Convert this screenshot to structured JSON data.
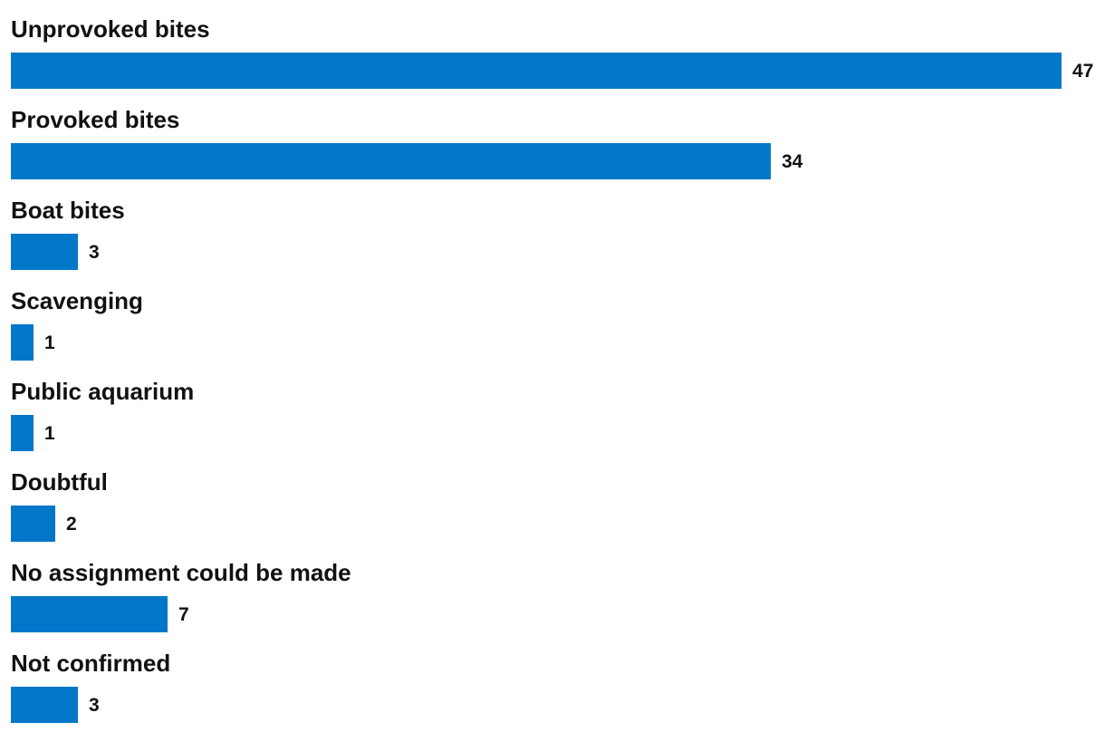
{
  "chart_data": {
    "type": "bar",
    "orientation": "horizontal",
    "title": "",
    "xlabel": "",
    "ylabel": "",
    "categories": [
      "Unprovoked bites",
      "Provoked bites",
      "Boat bites",
      "Scavenging",
      "Public aquarium",
      "Doubtful",
      "No assignment could be made",
      "Not confirmed"
    ],
    "values": [
      47,
      34,
      3,
      1,
      1,
      2,
      7,
      3
    ],
    "xlim": [
      0,
      47
    ],
    "grid": false,
    "legend": "none",
    "data_labels": true,
    "colors": {
      "bar": "#0077c8",
      "text": "#111111",
      "background": "#ffffff"
    }
  }
}
